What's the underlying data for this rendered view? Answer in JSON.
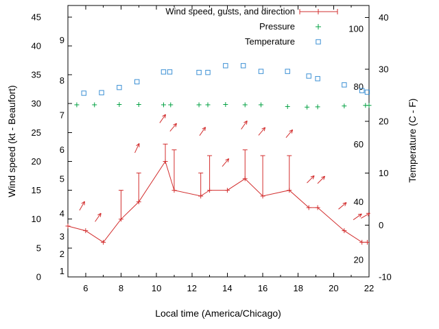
{
  "window": {
    "background": "#ffffff"
  },
  "chart_data": {
    "type": "line",
    "title": "",
    "xlabel": "Local time (America/Chicago)",
    "ylabel_left": "Wind speed (kt - Beaufort)",
    "ylabel_right": "Temperature (C - F)",
    "grid": false,
    "legend_position": "top-center",
    "x_range": [
      5,
      22
    ],
    "x_ticks": [
      6,
      8,
      10,
      12,
      14,
      16,
      18,
      20,
      22
    ],
    "x_minor_step": 1,
    "y_left_range": [
      0,
      47
    ],
    "y_left_ticks": [
      0,
      5,
      10,
      15,
      20,
      25,
      30,
      35,
      40,
      45
    ],
    "y_right_range": [
      -10,
      42.3
    ],
    "y_right_ticks": [
      -10,
      0,
      10,
      20,
      30,
      40
    ],
    "beaufort_scale": [
      {
        "label": "1",
        "kt": 1
      },
      {
        "label": "2",
        "kt": 4
      },
      {
        "label": "3",
        "kt": 7
      },
      {
        "label": "4",
        "kt": 11
      },
      {
        "label": "5",
        "kt": 17
      },
      {
        "label": "6",
        "kt": 22
      },
      {
        "label": "7",
        "kt": 28
      },
      {
        "label": "8",
        "kt": 34
      },
      {
        "label": "9",
        "kt": 41
      }
    ],
    "fahrenheit_scale": [
      {
        "label": "20",
        "f": 20
      },
      {
        "label": "40",
        "f": 40
      },
      {
        "label": "60",
        "f": 60
      },
      {
        "label": "80",
        "f": 80
      },
      {
        "label": "100",
        "f": 100
      }
    ],
    "series": [
      {
        "name": "Wind speed, gusts, and direction",
        "type": "line-with-gust-errorbars",
        "axis": "left",
        "unit": "kt",
        "color": "#d22c2c",
        "points": [
          {
            "x": 5.0,
            "speed": 8.8
          },
          {
            "x": 6.0,
            "speed": 8
          },
          {
            "x": 7.0,
            "speed": 6
          },
          {
            "x": 8.0,
            "speed": 10,
            "gust": 15
          },
          {
            "x": 9.0,
            "speed": 13,
            "gust": 18
          },
          {
            "x": 10.5,
            "speed": 20,
            "gust": 23
          },
          {
            "x": 11.0,
            "speed": 15,
            "gust": 22
          },
          {
            "x": 12.5,
            "speed": 14,
            "gust": 18
          },
          {
            "x": 13.0,
            "speed": 15,
            "gust": 21
          },
          {
            "x": 14.0,
            "speed": 15
          },
          {
            "x": 15.0,
            "speed": 17,
            "gust": 22
          },
          {
            "x": 16.0,
            "speed": 14,
            "gust": 21
          },
          {
            "x": 17.5,
            "speed": 15,
            "gust": 21
          },
          {
            "x": 18.6,
            "speed": 12
          },
          {
            "x": 19.1,
            "speed": 12
          },
          {
            "x": 20.6,
            "speed": 8
          },
          {
            "x": 21.6,
            "speed": 6
          },
          {
            "x": 21.9,
            "speed": 6
          }
        ]
      },
      {
        "name": "Pressure",
        "type": "scatter-plus",
        "axis": "left",
        "unit": "inHg",
        "color": "#00a040",
        "points": [
          {
            "x": 5.5,
            "value": 29.8
          },
          {
            "x": 6.5,
            "value": 29.8
          },
          {
            "x": 7.9,
            "value": 29.85
          },
          {
            "x": 9.0,
            "value": 29.85
          },
          {
            "x": 10.4,
            "value": 29.8
          },
          {
            "x": 10.8,
            "value": 29.8
          },
          {
            "x": 12.4,
            "value": 29.8
          },
          {
            "x": 12.9,
            "value": 29.8
          },
          {
            "x": 13.9,
            "value": 29.85
          },
          {
            "x": 15.0,
            "value": 29.8
          },
          {
            "x": 15.9,
            "value": 29.8
          },
          {
            "x": 17.4,
            "value": 29.5
          },
          {
            "x": 18.5,
            "value": 29.4
          },
          {
            "x": 19.1,
            "value": 29.45
          },
          {
            "x": 20.6,
            "value": 29.6
          },
          {
            "x": 21.8,
            "value": 29.7
          },
          {
            "x": 22.0,
            "value": 29.7
          }
        ]
      },
      {
        "name": "Temperature",
        "type": "scatter-square",
        "axis": "right",
        "unit": "C",
        "color": "#3a8fd4",
        "points": [
          {
            "x": 5.9,
            "value": 25.4
          },
          {
            "x": 6.9,
            "value": 25.5
          },
          {
            "x": 7.9,
            "value": 26.5
          },
          {
            "x": 8.9,
            "value": 27.6
          },
          {
            "x": 10.4,
            "value": 29.5
          },
          {
            "x": 10.75,
            "value": 29.5
          },
          {
            "x": 12.4,
            "value": 29.4
          },
          {
            "x": 12.9,
            "value": 29.4
          },
          {
            "x": 13.9,
            "value": 30.7
          },
          {
            "x": 14.9,
            "value": 30.7
          },
          {
            "x": 15.9,
            "value": 29.6
          },
          {
            "x": 17.4,
            "value": 29.6
          },
          {
            "x": 18.6,
            "value": 28.7
          },
          {
            "x": 19.1,
            "value": 28.2
          },
          {
            "x": 20.6,
            "value": 27.0
          },
          {
            "x": 21.6,
            "value": 25.9
          },
          {
            "x": 21.9,
            "value": 25.6
          }
        ]
      }
    ],
    "wind_direction_arrows": {
      "color": "#d22c2c",
      "points": [
        {
          "x": 5.8,
          "kt": 12.3,
          "angle_deg": 60
        },
        {
          "x": 6.7,
          "kt": 10.3,
          "angle_deg": 55
        },
        {
          "x": 8.9,
          "kt": 22.3,
          "angle_deg": 65
        },
        {
          "x": 10.35,
          "kt": 27.4,
          "angle_deg": 55
        },
        {
          "x": 10.95,
          "kt": 25.9,
          "angle_deg": 50
        },
        {
          "x": 12.6,
          "kt": 25.2,
          "angle_deg": 55
        },
        {
          "x": 13.9,
          "kt": 19.8,
          "angle_deg": 50
        },
        {
          "x": 14.95,
          "kt": 26.3,
          "angle_deg": 55
        },
        {
          "x": 15.95,
          "kt": 25.2,
          "angle_deg": 50
        },
        {
          "x": 17.5,
          "kt": 24.8,
          "angle_deg": 50
        },
        {
          "x": 18.7,
          "kt": 16.9,
          "angle_deg": 45
        },
        {
          "x": 19.3,
          "kt": 16.8,
          "angle_deg": 45
        },
        {
          "x": 20.5,
          "kt": 12.3,
          "angle_deg": 40
        },
        {
          "x": 21.35,
          "kt": 10.4,
          "angle_deg": 35
        },
        {
          "x": 21.8,
          "kt": 10.6,
          "angle_deg": 30
        }
      ]
    }
  }
}
